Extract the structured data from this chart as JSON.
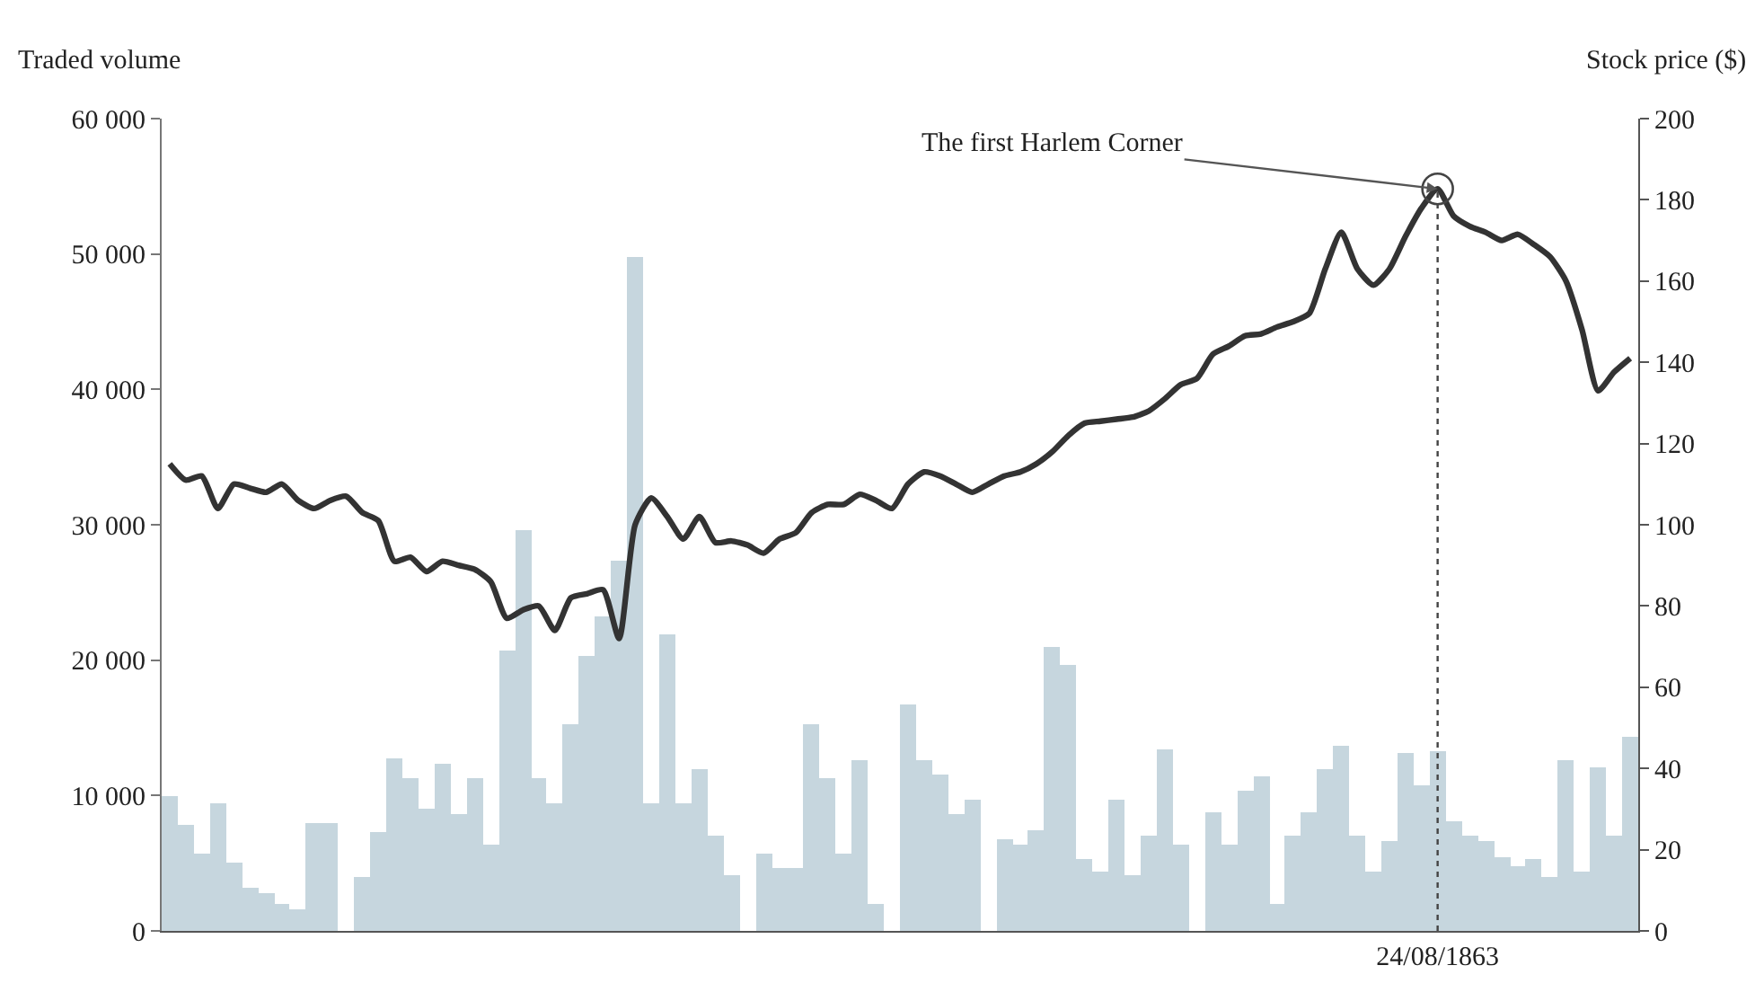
{
  "chart_data": {
    "type": "bar",
    "categories": [
      null,
      null,
      null,
      null,
      null,
      null,
      null,
      null,
      null,
      null,
      null,
      null,
      null,
      null,
      null,
      null,
      null,
      null,
      null,
      null,
      null,
      null,
      null,
      null,
      null,
      null,
      null,
      null,
      null,
      null,
      null,
      null,
      null,
      null,
      null,
      null,
      null,
      null,
      null,
      null,
      null,
      null,
      null,
      null,
      null,
      null,
      null,
      null,
      null,
      null,
      null,
      null,
      null,
      null,
      null,
      null,
      null,
      null,
      null,
      null,
      null,
      null,
      null,
      null,
      null,
      null,
      null,
      null,
      null,
      null,
      null,
      null,
      null,
      null,
      null,
      null,
      null,
      null,
      null,
      "24/08/1863",
      null,
      null,
      null,
      null,
      null,
      null,
      null,
      null,
      null,
      null,
      null,
      null
    ],
    "series": [
      {
        "color": "#c6d6de",
        "values": [
          10000,
          7800,
          5700,
          9400,
          5000,
          3200,
          2800,
          2000,
          1600,
          8000,
          8000,
          0,
          4000,
          7300,
          12700,
          11300,
          9000,
          12300,
          8600,
          11300,
          6400,
          20700,
          29600,
          11300,
          9400,
          15300,
          20300,
          23200,
          27300,
          49800,
          9400,
          21900,
          9400,
          11900,
          7000,
          4100,
          0,
          5700,
          4600,
          4600,
          15300,
          11300,
          5700,
          12600,
          2000,
          0,
          16700,
          12600,
          11500,
          8600,
          9700,
          0,
          6800,
          6400,
          7400,
          21000,
          19700,
          5300,
          4400,
          9700,
          4100,
          7000,
          13400,
          6400,
          0,
          8800,
          6400,
          10400,
          11400,
          2000,
          7000,
          8800,
          12000,
          13700,
          7000,
          4400,
          6600,
          13100,
          10800,
          13300,
          8100,
          7000,
          6600,
          5400,
          4800,
          5300,
          4000,
          12600,
          4400,
          12100,
          7000,
          14300
        ]
      },
      {
        "type": "line",
        "axis": "y2",
        "color": "#333333",
        "values": [
          115,
          111,
          112,
          104,
          110,
          109,
          108,
          110,
          106,
          104,
          106,
          107,
          103,
          101,
          91,
          92,
          88.5,
          91,
          90,
          89,
          86,
          77,
          79,
          80,
          74,
          82,
          83,
          84,
          72,
          100,
          106.6,
          102,
          96.5,
          102,
          95.6,
          96,
          95,
          93,
          96.5,
          98,
          103,
          105,
          105,
          107.5,
          106,
          104,
          110,
          113,
          112,
          110,
          108,
          110,
          112,
          113,
          115,
          118,
          122,
          125,
          125.5,
          126,
          126.5,
          128,
          131,
          134.5,
          136,
          142,
          144,
          146.5,
          147,
          148.7,
          150,
          152,
          163,
          172,
          163,
          159,
          163,
          171,
          178,
          182.7,
          176,
          173.5,
          172,
          170,
          171.5,
          169,
          166,
          160,
          148,
          133,
          137.6,
          141
        ]
      }
    ],
    "ylabel": "Traded volume",
    "y2label": "Stock price ($)",
    "ylim": [
      0,
      60000
    ],
    "yticks": [
      {
        "value": 0,
        "label": "0"
      },
      {
        "value": 10000,
        "label": "10 000"
      },
      {
        "value": 20000,
        "label": "20 000"
      },
      {
        "value": 30000,
        "label": "30 000"
      },
      {
        "value": 40000,
        "label": "40 000"
      },
      {
        "value": 50000,
        "label": "50 000"
      },
      {
        "value": 60000,
        "label": "60 000"
      }
    ],
    "y2lim": [
      0,
      200
    ],
    "y2ticks": [
      0,
      20,
      40,
      60,
      80,
      100,
      120,
      140,
      160,
      180,
      200
    ],
    "annotations": [
      "The first Harlem Corner"
    ],
    "ref_lines": [
      {
        "axis": "x",
        "value": "24/08/1863",
        "line_style": "dotted",
        "color": "#444444"
      }
    ],
    "marker": "none",
    "line_style": "solid"
  }
}
